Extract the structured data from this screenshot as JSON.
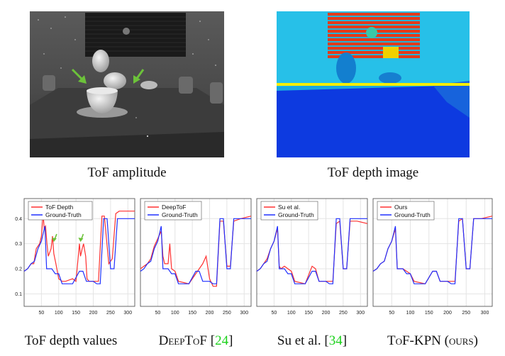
{
  "top_captions": {
    "amplitude": "ToF amplitude",
    "depth": "ToF depth image"
  },
  "bottom_captions": [
    {
      "pre": "ToF depth values",
      "cite": "",
      "post": ""
    },
    {
      "pre": "DeepToF [",
      "cite": "24",
      "post": "]"
    },
    {
      "pre": "Su et al. [",
      "cite": "34",
      "post": "]"
    },
    {
      "pre": "ToF-KPN (ours)",
      "cite": "",
      "post": ""
    }
  ],
  "colors": {
    "measured": "#ff3030",
    "ground_truth": "#2030ff",
    "citation": "#1bd11b",
    "arrow": "#6cc23a",
    "scanline": "#f5ee00"
  },
  "chart_data": [
    {
      "type": "line",
      "xlim": [
        0,
        320
      ],
      "ylim": [
        0.05,
        0.48
      ],
      "xticks": [
        50,
        100,
        150,
        200,
        250,
        300
      ],
      "yticks": [
        0.1,
        0.2,
        0.3,
        0.4
      ],
      "legend": [
        "ToF Depth",
        "Ground-Truth"
      ],
      "series": [
        {
          "name": "ToF Depth",
          "x": [
            0,
            10,
            20,
            28,
            35,
            45,
            50,
            55,
            58,
            62,
            66,
            70,
            78,
            82,
            86,
            92,
            100,
            110,
            120,
            140,
            150,
            160,
            163,
            168,
            172,
            178,
            182,
            188,
            200,
            215,
            225,
            232,
            245,
            255,
            265,
            275,
            300,
            320
          ],
          "y": [
            0.19,
            0.2,
            0.22,
            0.22,
            0.28,
            0.3,
            0.33,
            0.42,
            0.36,
            0.37,
            0.3,
            0.25,
            0.28,
            0.33,
            0.26,
            0.22,
            0.16,
            0.15,
            0.15,
            0.16,
            0.15,
            0.3,
            0.25,
            0.28,
            0.3,
            0.25,
            0.16,
            0.15,
            0.15,
            0.15,
            0.41,
            0.41,
            0.22,
            0.24,
            0.42,
            0.43,
            0.43,
            0.43
          ]
        },
        {
          "name": "Ground-Truth",
          "x": [
            0,
            10,
            20,
            30,
            40,
            50,
            60,
            65,
            70,
            80,
            90,
            100,
            110,
            140,
            160,
            170,
            180,
            200,
            210,
            220,
            230,
            240,
            250,
            260,
            270,
            290,
            320
          ],
          "y": [
            0.19,
            0.2,
            0.22,
            0.23,
            0.28,
            0.31,
            0.37,
            0.2,
            0.2,
            0.2,
            0.18,
            0.18,
            0.14,
            0.14,
            0.19,
            0.19,
            0.15,
            0.15,
            0.14,
            0.14,
            0.4,
            0.4,
            0.2,
            0.2,
            0.4,
            0.4,
            0.4
          ]
        }
      ]
    },
    {
      "type": "line",
      "xlim": [
        0,
        320
      ],
      "ylim": [
        0.05,
        0.48
      ],
      "xticks": [
        50,
        100,
        150,
        200,
        250,
        300
      ],
      "yticks": [
        0.1,
        0.2,
        0.3,
        0.4
      ],
      "legend": [
        "DeepToF",
        "Ground-Truth"
      ],
      "series": [
        {
          "name": "DeepToF",
          "x": [
            0,
            10,
            20,
            30,
            40,
            50,
            60,
            65,
            70,
            80,
            85,
            90,
            100,
            110,
            140,
            160,
            170,
            180,
            190,
            200,
            210,
            220,
            230,
            240,
            250,
            260,
            270,
            290,
            320
          ],
          "y": [
            0.2,
            0.21,
            0.22,
            0.24,
            0.29,
            0.32,
            0.35,
            0.25,
            0.22,
            0.22,
            0.3,
            0.2,
            0.19,
            0.15,
            0.14,
            0.18,
            0.2,
            0.22,
            0.25,
            0.16,
            0.13,
            0.13,
            0.39,
            0.39,
            0.21,
            0.21,
            0.39,
            0.4,
            0.41
          ]
        },
        {
          "name": "Ground-Truth",
          "x": [
            0,
            10,
            20,
            30,
            40,
            50,
            60,
            65,
            70,
            80,
            90,
            100,
            110,
            140,
            160,
            170,
            180,
            200,
            210,
            220,
            230,
            240,
            250,
            260,
            270,
            290,
            320
          ],
          "y": [
            0.19,
            0.2,
            0.22,
            0.23,
            0.28,
            0.31,
            0.37,
            0.2,
            0.2,
            0.2,
            0.18,
            0.18,
            0.14,
            0.14,
            0.19,
            0.19,
            0.15,
            0.15,
            0.14,
            0.14,
            0.4,
            0.4,
            0.2,
            0.2,
            0.4,
            0.4,
            0.4
          ]
        }
      ]
    },
    {
      "type": "line",
      "xlim": [
        0,
        320
      ],
      "ylim": [
        0.05,
        0.48
      ],
      "xticks": [
        50,
        100,
        150,
        200,
        250,
        300
      ],
      "yticks": [
        0.1,
        0.2,
        0.3,
        0.4
      ],
      "legend": [
        "Su et al.",
        "Ground-Truth"
      ],
      "series": [
        {
          "name": "Su et al.",
          "x": [
            0,
            10,
            20,
            30,
            40,
            50,
            60,
            65,
            70,
            80,
            90,
            100,
            110,
            140,
            160,
            170,
            180,
            200,
            210,
            220,
            230,
            240,
            250,
            260,
            270,
            290,
            320
          ],
          "y": [
            0.19,
            0.2,
            0.22,
            0.24,
            0.28,
            0.31,
            0.36,
            0.21,
            0.2,
            0.21,
            0.2,
            0.19,
            0.15,
            0.14,
            0.21,
            0.2,
            0.15,
            0.15,
            0.15,
            0.15,
            0.38,
            0.39,
            0.2,
            0.2,
            0.39,
            0.39,
            0.38
          ]
        },
        {
          "name": "Ground-Truth",
          "x": [
            0,
            10,
            20,
            30,
            40,
            50,
            60,
            65,
            70,
            80,
            90,
            100,
            110,
            140,
            160,
            170,
            180,
            200,
            210,
            220,
            230,
            240,
            250,
            260,
            270,
            290,
            320
          ],
          "y": [
            0.19,
            0.2,
            0.22,
            0.23,
            0.28,
            0.31,
            0.37,
            0.2,
            0.2,
            0.2,
            0.18,
            0.18,
            0.14,
            0.14,
            0.19,
            0.19,
            0.15,
            0.15,
            0.14,
            0.14,
            0.4,
            0.4,
            0.2,
            0.2,
            0.4,
            0.4,
            0.4
          ]
        }
      ]
    },
    {
      "type": "line",
      "xlim": [
        0,
        320
      ],
      "ylim": [
        0.05,
        0.48
      ],
      "xticks": [
        50,
        100,
        150,
        200,
        250,
        300
      ],
      "yticks": [
        0.1,
        0.2,
        0.3,
        0.4
      ],
      "legend": [
        "Ours",
        "Ground-Truth"
      ],
      "series": [
        {
          "name": "Ours",
          "x": [
            0,
            10,
            20,
            30,
            40,
            50,
            60,
            65,
            70,
            80,
            90,
            100,
            110,
            140,
            160,
            170,
            180,
            200,
            210,
            220,
            230,
            240,
            250,
            260,
            270,
            290,
            320
          ],
          "y": [
            0.19,
            0.2,
            0.22,
            0.23,
            0.28,
            0.31,
            0.36,
            0.2,
            0.2,
            0.2,
            0.19,
            0.18,
            0.15,
            0.14,
            0.19,
            0.19,
            0.15,
            0.15,
            0.15,
            0.15,
            0.39,
            0.4,
            0.2,
            0.2,
            0.4,
            0.4,
            0.41
          ]
        },
        {
          "name": "Ground-Truth",
          "x": [
            0,
            10,
            20,
            30,
            40,
            50,
            60,
            65,
            70,
            80,
            90,
            100,
            110,
            140,
            160,
            170,
            180,
            200,
            210,
            220,
            230,
            240,
            250,
            260,
            270,
            290,
            320
          ],
          "y": [
            0.19,
            0.2,
            0.22,
            0.23,
            0.28,
            0.31,
            0.37,
            0.2,
            0.2,
            0.2,
            0.18,
            0.18,
            0.14,
            0.14,
            0.19,
            0.19,
            0.15,
            0.15,
            0.14,
            0.14,
            0.4,
            0.4,
            0.2,
            0.2,
            0.4,
            0.4,
            0.4
          ]
        }
      ]
    }
  ],
  "arrows_plot1": [
    {
      "x": 88,
      "y": 0.31
    },
    {
      "x": 165,
      "y": 0.31
    }
  ]
}
